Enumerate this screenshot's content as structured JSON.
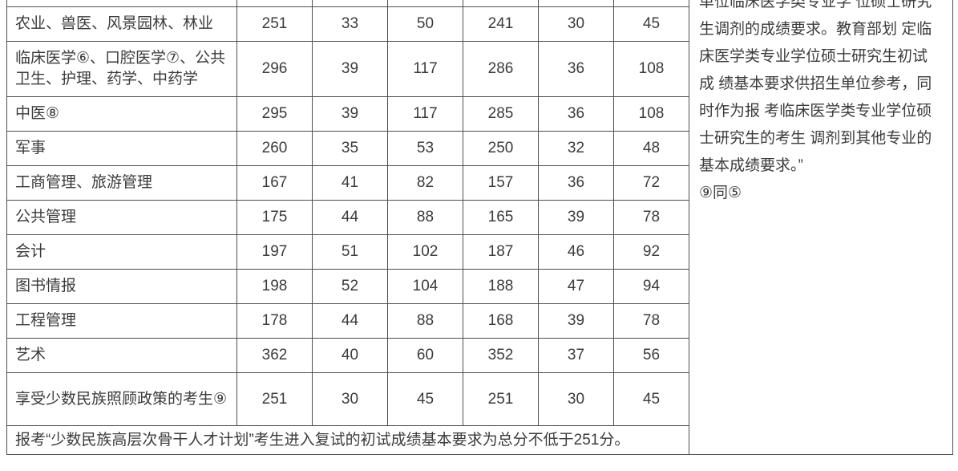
{
  "colors": {
    "text": "#3b3b3b",
    "border": "#4e4e4e",
    "background": "#ffffff"
  },
  "table": {
    "rows": [
      {
        "label": "农业、兽医、风景园林、林业",
        "values": [
          "251",
          "33",
          "50",
          "241",
          "30",
          "45"
        ]
      },
      {
        "label": "临床医学⑥、口腔医学⑦、公共卫生、护理、药学、中药学",
        "values": [
          "296",
          "39",
          "117",
          "286",
          "36",
          "108"
        ]
      },
      {
        "label": "中医⑧",
        "values": [
          "295",
          "39",
          "117",
          "285",
          "36",
          "108"
        ]
      },
      {
        "label": "军事",
        "values": [
          "260",
          "35",
          "53",
          "250",
          "32",
          "48"
        ]
      },
      {
        "label": "工商管理、旅游管理",
        "values": [
          "167",
          "41",
          "82",
          "157",
          "36",
          "72"
        ]
      },
      {
        "label": "公共管理",
        "values": [
          "175",
          "44",
          "88",
          "165",
          "39",
          "78"
        ]
      },
      {
        "label": "会计",
        "values": [
          "197",
          "51",
          "102",
          "187",
          "46",
          "92"
        ]
      },
      {
        "label": "图书情报",
        "values": [
          "198",
          "52",
          "104",
          "188",
          "47",
          "94"
        ]
      },
      {
        "label": "工程管理",
        "values": [
          "178",
          "44",
          "88",
          "168",
          "39",
          "78"
        ]
      },
      {
        "label": "艺术",
        "values": [
          "362",
          "40",
          "60",
          "352",
          "37",
          "56"
        ]
      },
      {
        "label": "享受少数民族照顾政策的考生⑨",
        "values": [
          "251",
          "30",
          "45",
          "251",
          "30",
          "45"
        ]
      }
    ],
    "footer_note": "报考“少数民族高层次骨干人才计划”考生进入复试的初试成绩基本要求为总分不低于251分。"
  },
  "notes_panel": {
    "lines": [
      "单位临床医学类专业学 位硕士研究",
      "生调剂的成绩要求。教育部划 定临",
      "床医学类专业学位硕士研究生初试",
      "成 绩基本要求供招生单位参考，同",
      "时作为报 考临床医学类专业学位硕",
      "士研究生的考生 调剂到其他专业的",
      "基本成绩要求。”",
      "⑨同⑤"
    ]
  }
}
